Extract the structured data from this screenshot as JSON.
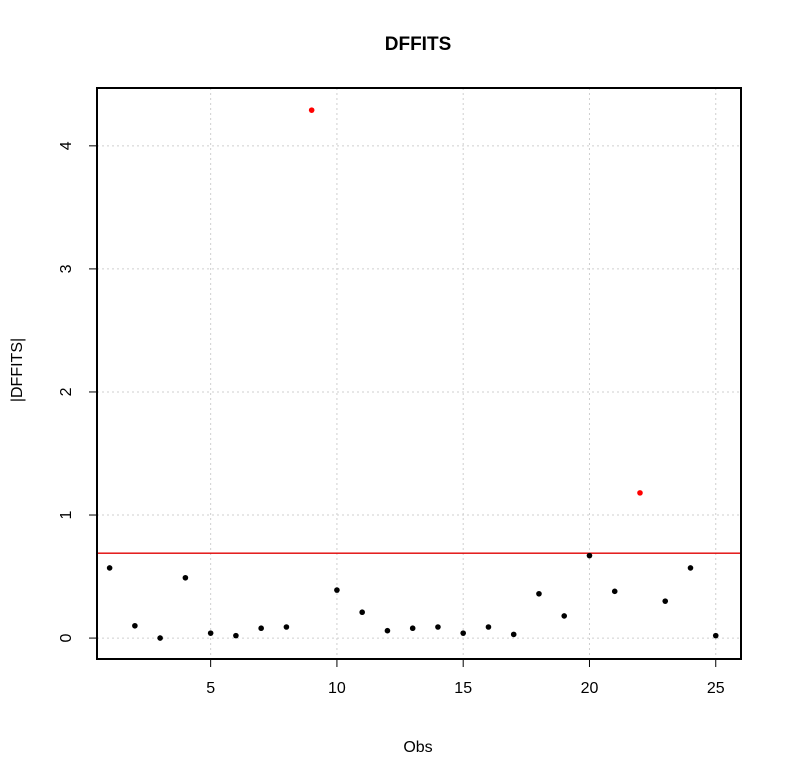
{
  "chart_data": {
    "type": "scatter",
    "title": "DFFITS",
    "xlabel": "Obs",
    "ylabel": "|DFFITS|",
    "xlim": [
      0.5,
      26.0
    ],
    "ylim": [
      -0.17,
      4.47
    ],
    "xticks": [
      5,
      10,
      15,
      20,
      25
    ],
    "yticks": [
      0,
      1,
      2,
      3,
      4
    ],
    "grid": true,
    "threshold": 0.69,
    "threshold_color": "#e00000",
    "point_color": "#000000",
    "highlight_color": "#ff0000",
    "points": [
      {
        "x": 1,
        "y": 0.57,
        "flag": false
      },
      {
        "x": 2,
        "y": 0.1,
        "flag": false
      },
      {
        "x": 3,
        "y": 0.0,
        "flag": false
      },
      {
        "x": 4,
        "y": 0.49,
        "flag": false
      },
      {
        "x": 5,
        "y": 0.04,
        "flag": false
      },
      {
        "x": 6,
        "y": 0.02,
        "flag": false
      },
      {
        "x": 7,
        "y": 0.08,
        "flag": false
      },
      {
        "x": 8,
        "y": 0.09,
        "flag": false
      },
      {
        "x": 9,
        "y": 4.29,
        "flag": true
      },
      {
        "x": 10,
        "y": 0.39,
        "flag": false
      },
      {
        "x": 11,
        "y": 0.21,
        "flag": false
      },
      {
        "x": 12,
        "y": 0.06,
        "flag": false
      },
      {
        "x": 13,
        "y": 0.08,
        "flag": false
      },
      {
        "x": 14,
        "y": 0.09,
        "flag": false
      },
      {
        "x": 15,
        "y": 0.04,
        "flag": false
      },
      {
        "x": 16,
        "y": 0.09,
        "flag": false
      },
      {
        "x": 17,
        "y": 0.03,
        "flag": false
      },
      {
        "x": 18,
        "y": 0.36,
        "flag": false
      },
      {
        "x": 19,
        "y": 0.18,
        "flag": false
      },
      {
        "x": 20,
        "y": 0.67,
        "flag": false
      },
      {
        "x": 21,
        "y": 0.38,
        "flag": false
      },
      {
        "x": 22,
        "y": 1.18,
        "flag": true
      },
      {
        "x": 23,
        "y": 0.3,
        "flag": false
      },
      {
        "x": 24,
        "y": 0.57,
        "flag": false
      },
      {
        "x": 25,
        "y": 0.02,
        "flag": false
      }
    ]
  }
}
